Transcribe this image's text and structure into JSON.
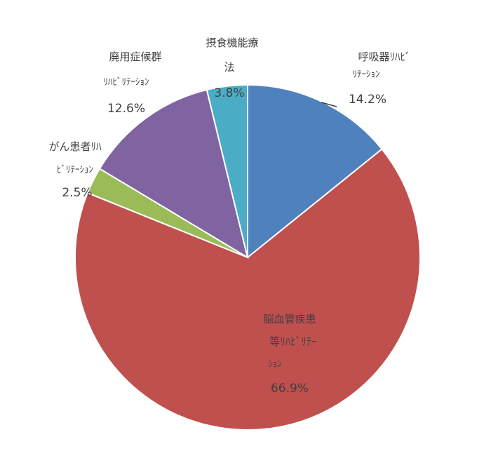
{
  "chart_data": {
    "type": "pie",
    "title": "",
    "legend": "none",
    "start": "12 o'clock, clockwise",
    "slices": [
      {
        "name": "呼吸器リハビリテーション",
        "label_lines": [
          "呼吸器ﾘﾊﾋﾞ",
          "ﾘﾃｰｼｮﾝ"
        ],
        "value": 14.2,
        "value_label": "14.2%",
        "color": "#4f81bd"
      },
      {
        "name": "脳血管疾患等リハビリテーション",
        "label_lines": [
          "脳血管疾患",
          "等ﾘﾊﾋﾞﾘﾃｰ",
          "ｼｮﾝ"
        ],
        "value": 66.9,
        "value_label": "66.9%",
        "color": "#c0504d"
      },
      {
        "name": "がん患者リハビリテーション",
        "label_lines": [
          "がん患者ﾘﾊ",
          "ﾋﾞﾘﾃｰｼｮﾝ"
        ],
        "value": 2.5,
        "value_label": "2.5%",
        "color": "#9bbb59"
      },
      {
        "name": "廃用症候群リハビリテーション",
        "label_lines": [
          "廃用症候群",
          "ﾘﾊﾋﾞﾘﾃｰｼｮﾝ"
        ],
        "value": 12.6,
        "value_label": "12.6%",
        "color": "#8064a2"
      },
      {
        "name": "摂食機能療法",
        "label_lines": [
          "摂食機能療",
          "法"
        ],
        "value": 3.8,
        "value_label": "3.8%",
        "color": "#4bacc6"
      }
    ]
  }
}
